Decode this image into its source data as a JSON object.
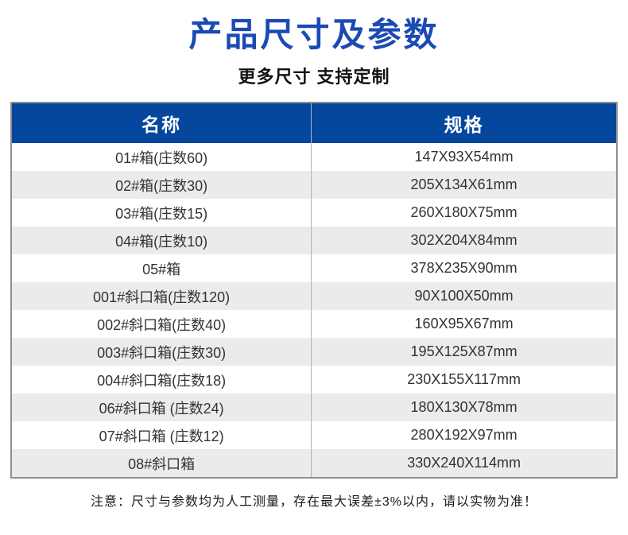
{
  "header": {
    "title": "产品尺寸及参数",
    "subtitle": "更多尺寸 支持定制"
  },
  "table": {
    "columns": {
      "name": "名称",
      "spec": "规格"
    },
    "rows": [
      {
        "name": "01#箱(庄数60)",
        "spec": "147X93X54mm"
      },
      {
        "name": "02#箱(庄数30)",
        "spec": "205X134X61mm"
      },
      {
        "name": "03#箱(庄数15)",
        "spec": "260X180X75mm"
      },
      {
        "name": "04#箱(庄数10)",
        "spec": "302X204X84mm"
      },
      {
        "name": "05#箱",
        "spec": "378X235X90mm"
      },
      {
        "name": "001#斜口箱(庄数120)",
        "spec": "90X100X50mm"
      },
      {
        "name": "002#斜口箱(庄数40)",
        "spec": "160X95X67mm"
      },
      {
        "name": "003#斜口箱(庄数30)",
        "spec": "195X125X87mm"
      },
      {
        "name": "004#斜口箱(庄数18)",
        "spec": "230X155X117mm"
      },
      {
        "name": "06#斜口箱 (庄数24)",
        "spec": "180X130X78mm"
      },
      {
        "name": "07#斜口箱 (庄数12)",
        "spec": "280X192X97mm"
      },
      {
        "name": "08#斜口箱",
        "spec": "330X240X114mm"
      }
    ]
  },
  "footer": {
    "note": "注意：尺寸与参数均为人工测量，存在最大误差±3%以内，请以实物为准！"
  },
  "colors": {
    "title_blue": "#1b4ab5",
    "header_blue": "#04479d",
    "row_alt": "#ebebeb",
    "border_gray": "#8f8f8f"
  }
}
